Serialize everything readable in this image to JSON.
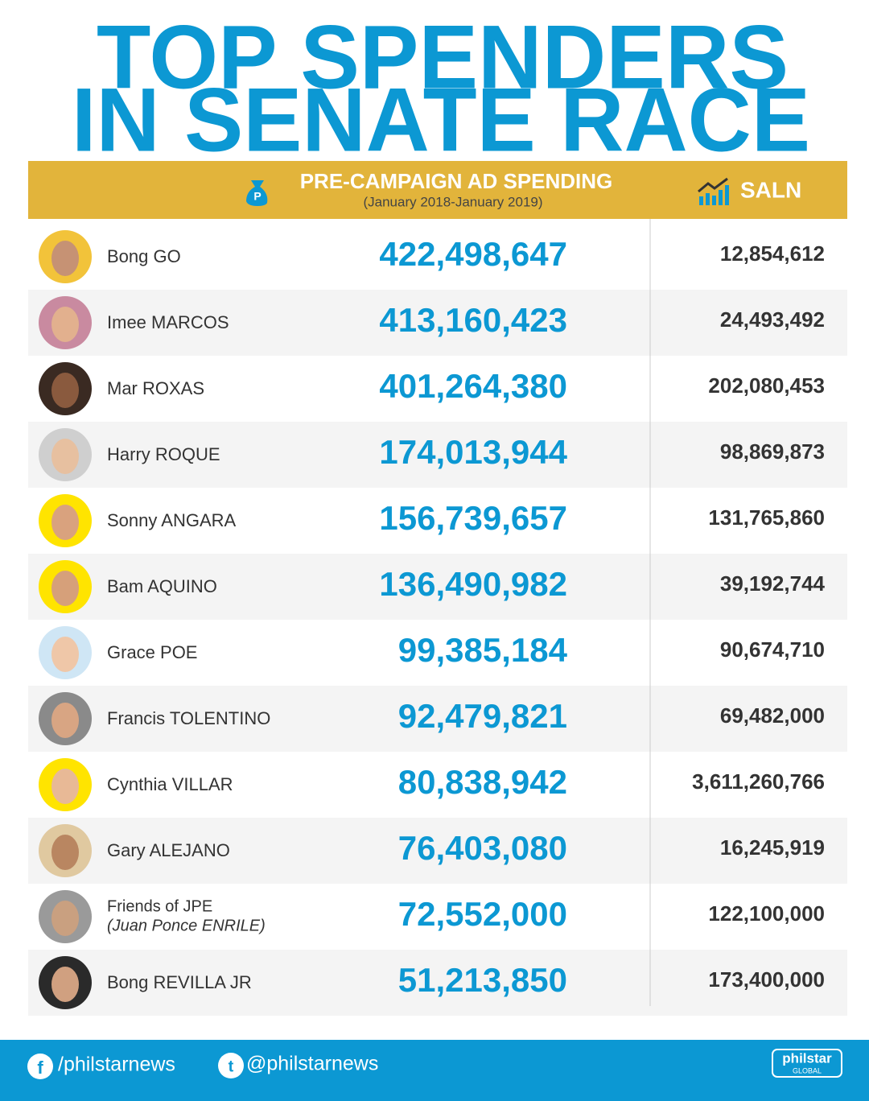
{
  "header": {
    "title_lines": [
      "TOP SPENDERS",
      "IN SENATE RACE"
    ]
  },
  "table": {
    "columns": {
      "spending": "PRE-CAMPAIGN AD SPENDING",
      "spending_note": "(January 2018-January 2019)",
      "saln": "SALN"
    },
    "rows": [
      {
        "name": "Bong GO",
        "spending": "422,498,647",
        "saln": "12,854,612"
      },
      {
        "name": "Imee MARCOS",
        "spending": "413,160,423",
        "saln": "24,493,492"
      },
      {
        "name": "Mar ROXAS",
        "spending": "401,264,380",
        "saln": "202,080,453"
      },
      {
        "name": "Harry ROQUE",
        "spending": "174,013,944",
        "saln": "98,869,873"
      },
      {
        "name": "Sonny ANGARA",
        "spending": "156,739,657",
        "saln": "131,765,860"
      },
      {
        "name": "Bam AQUINO",
        "spending": "136,490,982",
        "saln": "39,192,744"
      },
      {
        "name": "Grace POE",
        "spending": "99,385,184",
        "saln": "90,674,710"
      },
      {
        "name": "Francis TOLENTINO",
        "spending": "92,479,821",
        "saln": "69,482,000"
      },
      {
        "name": "Cynthia VILLAR",
        "spending": "80,838,942",
        "saln": "3,611,260,766"
      },
      {
        "name": "Gary ALEJANO",
        "spending": "76,403,080",
        "saln": "16,245,919"
      },
      {
        "name": "Friends of JPE",
        "note": "(Juan Ponce ENRILE)",
        "spending": "72,552,000",
        "saln": "122,100,000"
      },
      {
        "name": "Bong REVILLA JR",
        "spending": "51,213,850",
        "saln": "173,400,000"
      }
    ]
  },
  "footer": {
    "facebook": "/philstarnews",
    "twitter": "@philstarnews",
    "logo": "philstar",
    "logo_sub": "GLOBAL"
  }
}
